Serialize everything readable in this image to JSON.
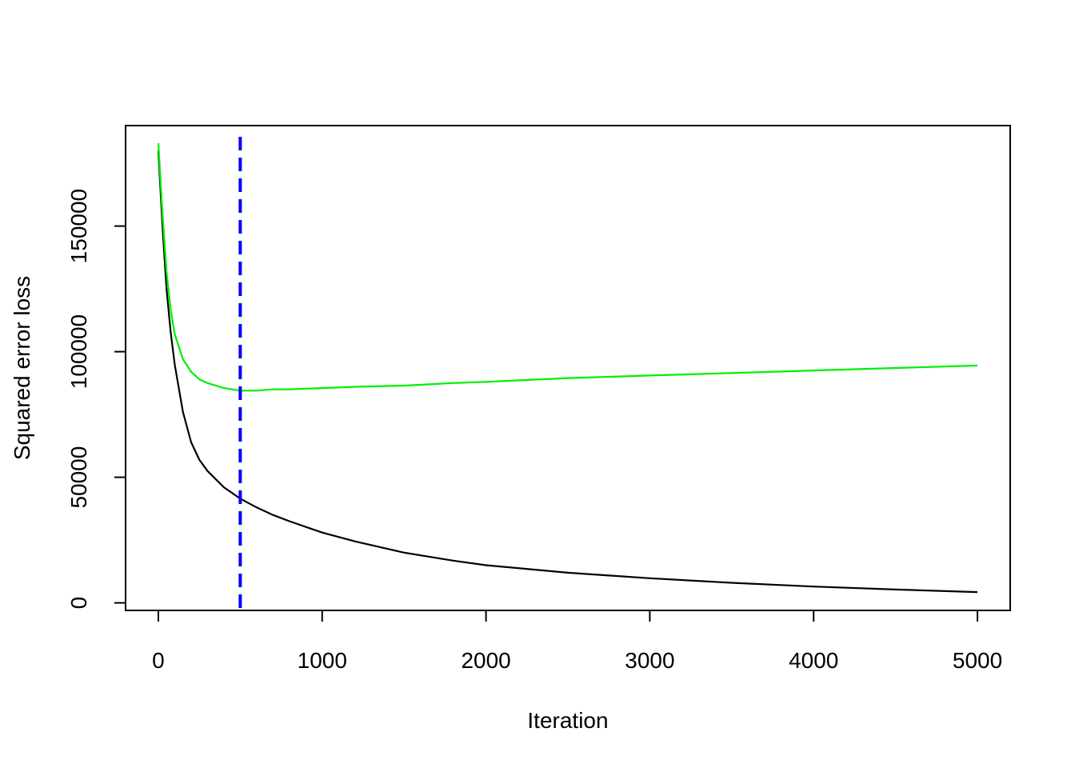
{
  "chart_data": {
    "type": "line",
    "title": "",
    "xlabel": "Iteration",
    "ylabel": "Squared error loss",
    "xlim": [
      -200,
      5200
    ],
    "ylim": [
      -3000,
      190000
    ],
    "x_ticks": [
      0,
      1000,
      2000,
      3000,
      4000,
      5000
    ],
    "y_ticks": [
      0,
      50000,
      100000,
      150000
    ],
    "x_tick_labels": [
      "0",
      "1000",
      "2000",
      "3000",
      "4000",
      "5000"
    ],
    "y_tick_labels": [
      "0",
      "50000",
      "100000",
      "150000"
    ],
    "grid": false,
    "legend": "none",
    "vline": {
      "x": 500,
      "color": "#0000ff",
      "style": "dashed"
    },
    "series": [
      {
        "color": "#000000",
        "x": [
          0,
          25,
          50,
          75,
          100,
          150,
          200,
          250,
          300,
          400,
          500,
          600,
          700,
          800,
          1000,
          1200,
          1500,
          1800,
          2000,
          2500,
          3000,
          3500,
          4000,
          4500,
          5000
        ],
        "y": [
          180000,
          150000,
          125000,
          108000,
          95000,
          76000,
          64000,
          57000,
          52500,
          46000,
          41500,
          38000,
          35000,
          32500,
          28000,
          24500,
          20000,
          16800,
          15000,
          12000,
          9800,
          8000,
          6500,
          5300,
          4300
        ]
      },
      {
        "color": "#00ee00",
        "x": [
          0,
          25,
          50,
          75,
          100,
          150,
          200,
          250,
          300,
          400,
          500,
          600,
          700,
          800,
          1000,
          1200,
          1500,
          1800,
          2000,
          2500,
          3000,
          3500,
          4000,
          4500,
          5000
        ],
        "y": [
          183000,
          155000,
          132000,
          117000,
          107000,
          97000,
          92000,
          89000,
          87500,
          85500,
          84500,
          84500,
          85000,
          85000,
          85500,
          86000,
          86500,
          87500,
          88000,
          89500,
          90500,
          91500,
          92500,
          93500,
          94500
        ]
      }
    ]
  }
}
